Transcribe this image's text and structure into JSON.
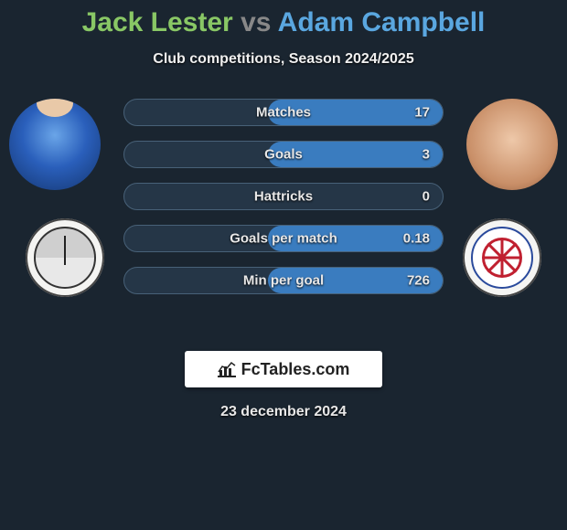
{
  "title": {
    "player1": "Jack Lester",
    "vs": "vs",
    "player2": "Adam Campbell"
  },
  "subtitle": "Club competitions, Season 2024/2025",
  "date": "23 december 2024",
  "branding": "FcTables.com",
  "colors": {
    "player1": "#89c765",
    "player2": "#5aa7e0",
    "bar_bg": "#253647",
    "bar_border": "#486178",
    "fill_left": "#6ea744",
    "fill_right": "#3a7cbf",
    "page_bg": "#1a2530"
  },
  "stats": [
    {
      "label": "Matches",
      "left_value": "",
      "right_value": "17",
      "left_pct": 0,
      "right_pct": 55
    },
    {
      "label": "Goals",
      "left_value": "",
      "right_value": "3",
      "left_pct": 0,
      "right_pct": 55
    },
    {
      "label": "Hattricks",
      "left_value": "",
      "right_value": "0",
      "left_pct": 0,
      "right_pct": 0
    },
    {
      "label": "Goals per match",
      "left_value": "",
      "right_value": "0.18",
      "left_pct": 0,
      "right_pct": 55
    },
    {
      "label": "Min per goal",
      "left_value": "",
      "right_value": "726",
      "left_pct": 0,
      "right_pct": 55
    }
  ]
}
